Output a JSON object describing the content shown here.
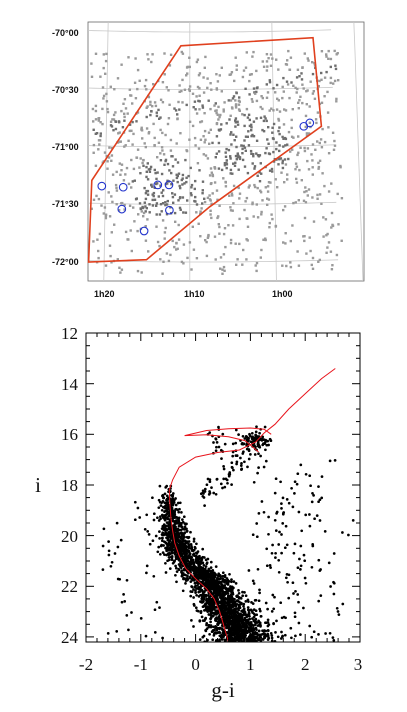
{
  "chart_data": [
    {
      "type": "scatter",
      "panel": "sky-map",
      "title": "",
      "x_tick_labels": [
        "1h20",
        "1h10",
        "1h00"
      ],
      "y_tick_labels": [
        "-70°00",
        "-70°30",
        "-71°00",
        "-71°30",
        "-72°00"
      ],
      "grid": true,
      "colors": {
        "stars": "#9a9a9a",
        "dense_core": "#6e6e6e",
        "boundary": "#e0401e",
        "markers": "#2233cc",
        "grid": "#c8c8c8"
      },
      "boundary_polygon_ra_dec": [
        [
          1.363,
          -72.0
        ],
        [
          1.36,
          -71.29
        ],
        [
          1.185,
          -70.12
        ],
        [
          0.917,
          -70.05
        ],
        [
          0.905,
          -70.82
        ],
        [
          1.128,
          -71.52
        ],
        [
          1.251,
          -71.98
        ]
      ],
      "marked_objects_ra_dec": [
        [
          1.34,
          -71.34
        ],
        [
          1.298,
          -71.35
        ],
        [
          1.23,
          -71.33
        ],
        [
          1.208,
          -71.33
        ],
        [
          1.3,
          -71.54
        ],
        [
          1.207,
          -71.55
        ],
        [
          1.256,
          -71.73
        ],
        [
          0.94,
          -70.82
        ],
        [
          0.928,
          -70.79
        ]
      ]
    },
    {
      "type": "scatter",
      "panel": "color-magnitude-diagram",
      "title": "",
      "xlabel": "g-i",
      "ylabel": "i",
      "xlim": [
        -2,
        3
      ],
      "ylim": [
        24.2,
        12
      ],
      "y_inverted": true,
      "x_ticks": [
        "-2",
        "-1",
        "0",
        "1",
        "2",
        "3"
      ],
      "y_ticks": [
        "12",
        "14",
        "16",
        "18",
        "20",
        "22",
        "24"
      ],
      "grid": false,
      "colors": {
        "points": "#000000",
        "isochrone": "#e8141c"
      },
      "isochrone_rgb": [
        [
          0.6,
          24.2
        ],
        [
          0.52,
          23.6
        ],
        [
          0.44,
          23.0
        ],
        [
          0.34,
          22.5
        ],
        [
          0.2,
          22.1
        ],
        [
          0.0,
          21.7
        ],
        [
          -0.18,
          21.3
        ],
        [
          -0.3,
          20.8
        ],
        [
          -0.38,
          20.3
        ],
        [
          -0.42,
          19.8
        ],
        [
          -0.45,
          19.3
        ],
        [
          -0.47,
          18.7
        ],
        [
          -0.48,
          18.2
        ],
        [
          -0.42,
          17.8
        ],
        [
          -0.3,
          17.3
        ],
        [
          0.0,
          16.9
        ],
        [
          0.4,
          16.72
        ],
        [
          0.8,
          16.62
        ],
        [
          1.1,
          16.3
        ],
        [
          1.25,
          15.95
        ],
        [
          1.45,
          15.6
        ],
        [
          1.7,
          15.0
        ],
        [
          2.0,
          14.4
        ],
        [
          2.3,
          13.8
        ],
        [
          2.55,
          13.4
        ]
      ],
      "isochrone_hb": [
        [
          1.15,
          16.7
        ],
        [
          0.9,
          16.25
        ],
        [
          0.6,
          16.1
        ],
        [
          0.2,
          16.02
        ],
        [
          -0.2,
          16.05
        ],
        [
          0.2,
          15.85
        ],
        [
          0.6,
          15.78
        ],
        [
          1.0,
          15.75
        ],
        [
          1.25,
          15.8
        ],
        [
          1.38,
          16.0
        ]
      ],
      "ms_ridge": [
        [
          -0.5,
          18.0
        ],
        [
          -0.48,
          18.6
        ],
        [
          -0.45,
          19.2
        ],
        [
          -0.4,
          19.8
        ],
        [
          -0.34,
          20.3
        ],
        [
          -0.22,
          20.8
        ],
        [
          -0.05,
          21.2
        ],
        [
          0.12,
          21.6
        ],
        [
          0.3,
          22.0
        ],
        [
          0.45,
          22.5
        ],
        [
          0.6,
          23.0
        ],
        [
          0.72,
          23.5
        ],
        [
          0.85,
          24.0
        ]
      ],
      "clump": [
        1.1,
        16.3
      ]
    }
  ]
}
